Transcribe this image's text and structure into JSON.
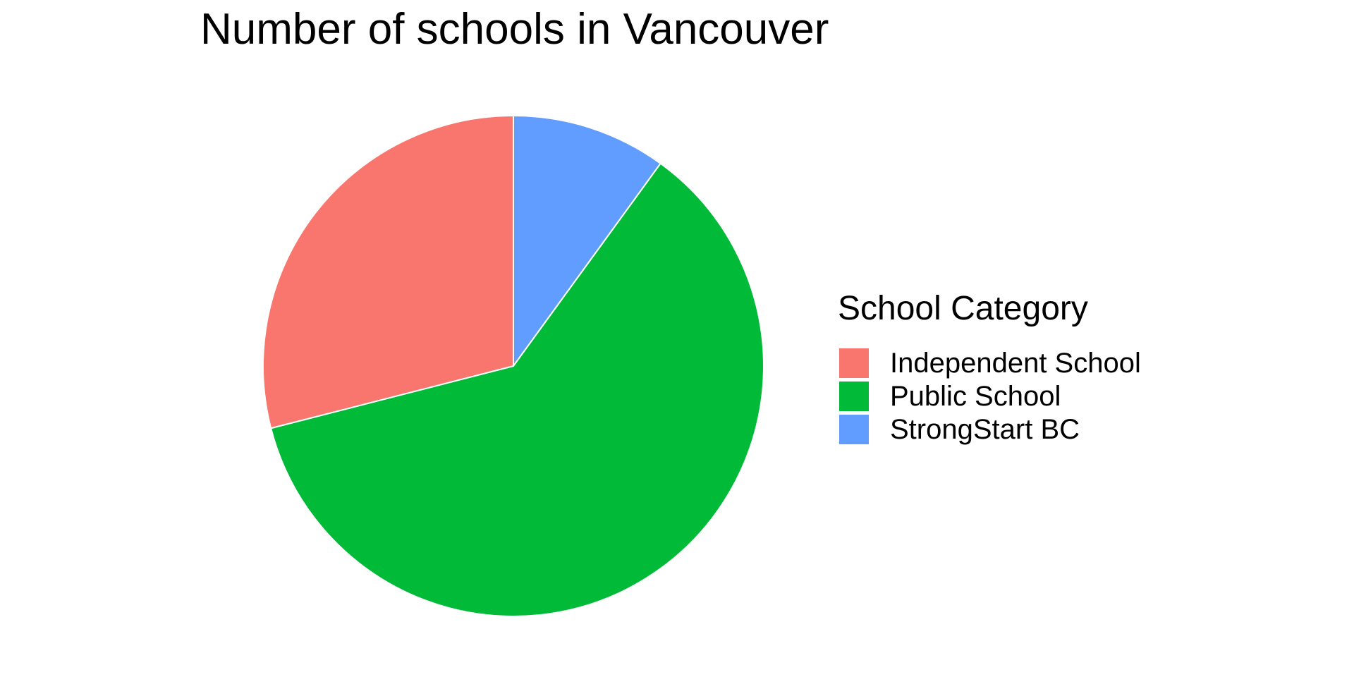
{
  "chart_data": {
    "type": "pie",
    "title": "Number of schools in Vancouver",
    "legend": {
      "title": "School Category",
      "placement": "right"
    },
    "categories": [
      "Independent School",
      "Public School",
      "StrongStart BC"
    ],
    "values": [
      29,
      61,
      10
    ],
    "colors": [
      "#F8766D",
      "#00BA38",
      "#619CFF"
    ],
    "start": "12 o'clock",
    "direction": "counterclockwise"
  }
}
